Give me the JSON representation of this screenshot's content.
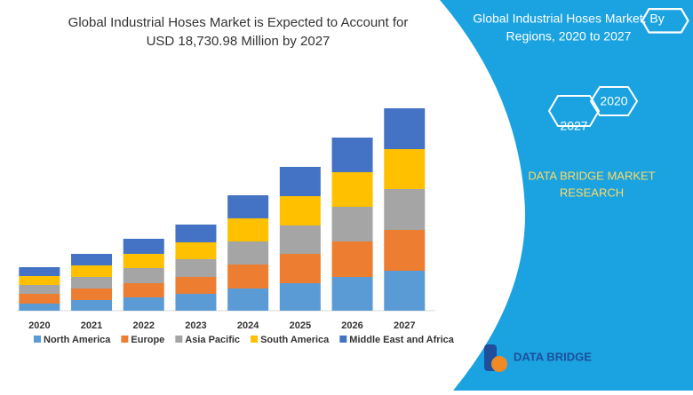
{
  "chart_data": {
    "type": "stacked-bar",
    "title": "Global Industrial Hoses Market is Expected to Account for",
    "subtitle": "USD 18,730.98 Million by 2027",
    "categories": [
      "2020",
      "2021",
      "2022",
      "2023",
      "2024",
      "2025",
      "2026",
      "2027"
    ],
    "series": [
      {
        "name": "North America",
        "color": "#5b9bd5",
        "values": [
          8,
          12,
          15,
          19,
          25,
          31,
          38,
          45
        ]
      },
      {
        "name": "Europe",
        "color": "#ed7d31",
        "values": [
          11,
          13,
          16,
          19,
          27,
          33,
          40,
          46
        ]
      },
      {
        "name": "Asia Pacific",
        "color": "#a5a5a5",
        "values": [
          10,
          13,
          17,
          20,
          26,
          32,
          39,
          46
        ]
      },
      {
        "name": "South America",
        "color": "#ffc000",
        "values": [
          10,
          13,
          16,
          19,
          26,
          33,
          39,
          45
        ]
      },
      {
        "name": "Middle East and Africa",
        "color": "#4472c4",
        "values": [
          10,
          13,
          17,
          20,
          26,
          33,
          39,
          46
        ]
      }
    ]
  },
  "panel": {
    "title_line1": "Global Industrial Hoses Market, By",
    "title_line2": "Regions, 2020 to 2027",
    "hex_a": "2020",
    "hex_b": "2027",
    "brand_line1": "DATA BRIDGE MARKET",
    "brand_line2": "RESEARCH"
  },
  "logo": {
    "text": "DATA BRIDGE"
  }
}
